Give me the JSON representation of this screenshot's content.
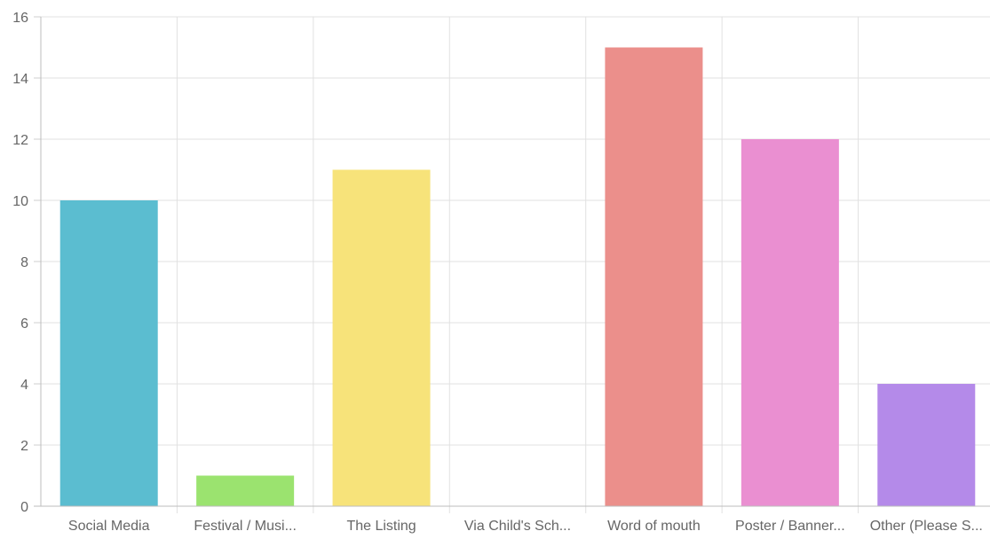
{
  "chart_data": {
    "type": "bar",
    "categories": [
      "Social Media",
      "Festival / Musi...",
      "The Listing",
      "Via Child's Sch...",
      "Word of mouth",
      "Poster / Banner...",
      "Other (Please S..."
    ],
    "values": [
      10,
      1,
      11,
      0,
      15,
      12,
      4
    ],
    "colors": [
      "#5bbdd0",
      "#9be36f",
      "#f7e37a",
      "#cccccc",
      "#eb8f8b",
      "#ea8fd1",
      "#b48ae9"
    ],
    "ylim": [
      0,
      16
    ],
    "yticks": [
      0,
      2,
      4,
      6,
      8,
      10,
      12,
      14,
      16
    ],
    "grid": true,
    "legend": "none"
  }
}
